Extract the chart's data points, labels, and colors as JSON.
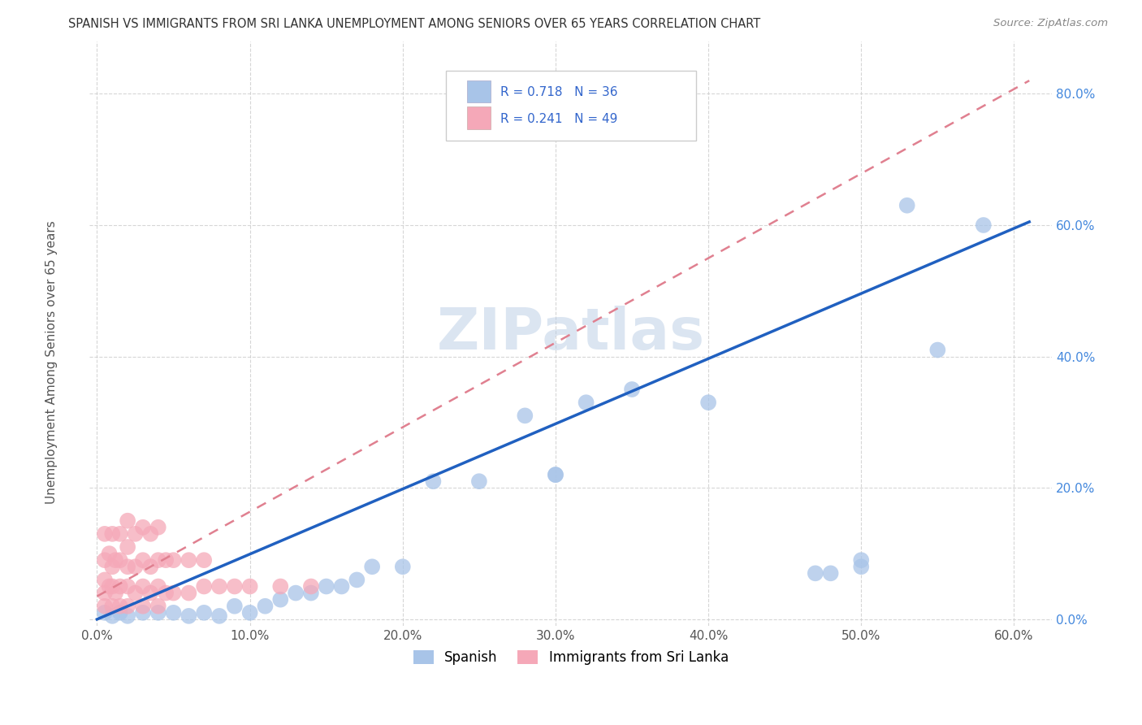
{
  "title": "SPANISH VS IMMIGRANTS FROM SRI LANKA UNEMPLOYMENT AMONG SENIORS OVER 65 YEARS CORRELATION CHART",
  "source": "Source: ZipAtlas.com",
  "ylabel": "Unemployment Among Seniors over 65 years",
  "xlabel": "",
  "xlim": [
    -0.005,
    0.625
  ],
  "ylim": [
    -0.01,
    0.88
  ],
  "xticks": [
    0.0,
    0.1,
    0.2,
    0.3,
    0.4,
    0.5,
    0.6
  ],
  "yticks": [
    0.0,
    0.2,
    0.4,
    0.6,
    0.8
  ],
  "watermark": "ZIPatlas",
  "legend_r1": "R = 0.718",
  "legend_n1": "N = 36",
  "legend_r2": "R = 0.241",
  "legend_n2": "N = 49",
  "color_spanish": "#a8c4e8",
  "color_srilanka": "#f5a8b8",
  "color_line_spanish": "#2060c0",
  "color_line_srilanka": "#e08090",
  "spanish_x": [
    0.005,
    0.01,
    0.015,
    0.02,
    0.03,
    0.04,
    0.05,
    0.06,
    0.07,
    0.08,
    0.09,
    0.1,
    0.11,
    0.12,
    0.13,
    0.14,
    0.15,
    0.16,
    0.17,
    0.18,
    0.2,
    0.22,
    0.25,
    0.28,
    0.3,
    0.3,
    0.32,
    0.35,
    0.4,
    0.47,
    0.48,
    0.5,
    0.5,
    0.53,
    0.55,
    0.58
  ],
  "spanish_y": [
    0.01,
    0.005,
    0.01,
    0.005,
    0.01,
    0.01,
    0.01,
    0.005,
    0.01,
    0.005,
    0.02,
    0.01,
    0.02,
    0.03,
    0.04,
    0.04,
    0.05,
    0.05,
    0.06,
    0.08,
    0.08,
    0.21,
    0.21,
    0.31,
    0.22,
    0.22,
    0.33,
    0.35,
    0.33,
    0.07,
    0.07,
    0.08,
    0.09,
    0.63,
    0.41,
    0.6
  ],
  "srilanka_x": [
    0.005,
    0.005,
    0.005,
    0.005,
    0.005,
    0.008,
    0.008,
    0.01,
    0.01,
    0.01,
    0.01,
    0.012,
    0.012,
    0.015,
    0.015,
    0.015,
    0.015,
    0.02,
    0.02,
    0.02,
    0.02,
    0.02,
    0.025,
    0.025,
    0.025,
    0.03,
    0.03,
    0.03,
    0.03,
    0.035,
    0.035,
    0.035,
    0.04,
    0.04,
    0.04,
    0.04,
    0.045,
    0.045,
    0.05,
    0.05,
    0.06,
    0.06,
    0.07,
    0.07,
    0.08,
    0.09,
    0.1,
    0.12,
    0.14
  ],
  "srilanka_y": [
    0.02,
    0.04,
    0.06,
    0.09,
    0.13,
    0.05,
    0.1,
    0.02,
    0.05,
    0.08,
    0.13,
    0.04,
    0.09,
    0.02,
    0.05,
    0.09,
    0.13,
    0.02,
    0.05,
    0.08,
    0.11,
    0.15,
    0.04,
    0.08,
    0.13,
    0.02,
    0.05,
    0.09,
    0.14,
    0.04,
    0.08,
    0.13,
    0.02,
    0.05,
    0.09,
    0.14,
    0.04,
    0.09,
    0.04,
    0.09,
    0.04,
    0.09,
    0.05,
    0.09,
    0.05,
    0.05,
    0.05,
    0.05,
    0.05
  ]
}
